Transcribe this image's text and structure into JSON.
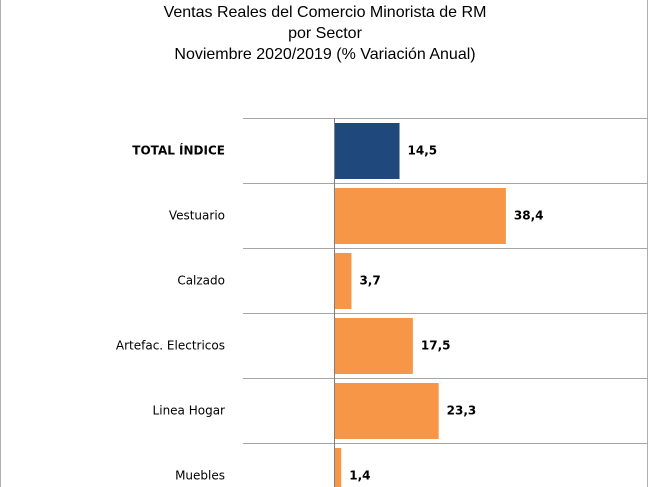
{
  "chart_data": {
    "type": "bar",
    "orientation": "horizontal",
    "title_lines": [
      "Ventas Reales del Comercio Minorista de RM",
      "por Sector",
      "Noviembre 2020/2019 (% Variación Anual)"
    ],
    "categories": [
      "TOTAL ÍNDICE",
      "Vestuario",
      "Calzado",
      "Artefac. Electricos",
      "Linea Hogar",
      "Muebles"
    ],
    "values": [
      14.5,
      38.4,
      3.7,
      17.5,
      23.3,
      1.4
    ],
    "value_labels": [
      "14,5",
      "38,4",
      "3,7",
      "17,5",
      "23,3",
      "1,4"
    ],
    "highlight_category": "TOTAL ÍNDICE",
    "colors": {
      "highlight": "#1f497d",
      "default": "#f79646",
      "grid": "#a6a6a6"
    },
    "xlim": [
      0,
      55
    ],
    "grid": "horizontal separators",
    "legend": "none"
  }
}
